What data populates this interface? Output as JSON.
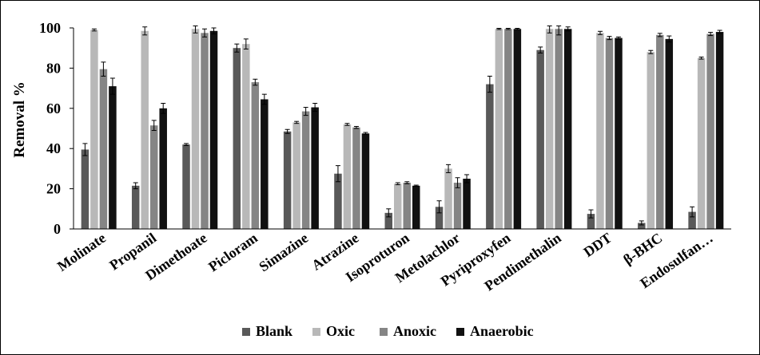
{
  "chart_data": {
    "type": "bar",
    "ylabel": "Removal %",
    "xlabel": "",
    "ylim": [
      0,
      100
    ],
    "yticks": [
      0,
      20,
      40,
      60,
      80,
      100
    ],
    "grid": false,
    "legend_position": "bottom",
    "categories": [
      "Molinate",
      "Propanil",
      "Dimethoate",
      "Picloram",
      "Simazine",
      "Atrazine",
      "Isoproturon",
      "Metolachlor",
      "Pyriproxyfen",
      "Pendimethalin",
      "DDT",
      "β-BHC",
      "Endosulfan…"
    ],
    "series": [
      {
        "name": "Blank",
        "color": "#595959",
        "values": [
          39.5,
          21.5,
          42,
          90,
          48.5,
          27.5,
          8,
          11,
          72,
          89,
          7.5,
          3,
          8.5
        ],
        "errors": [
          3,
          1.5,
          0.5,
          2,
          1,
          4,
          2,
          3,
          4,
          1.5,
          2,
          1,
          2.5
        ]
      },
      {
        "name": "Oxic",
        "color": "#b8b8b8",
        "values": [
          99,
          98.5,
          99.5,
          92,
          53,
          52,
          22.5,
          30,
          99.5,
          99.5,
          97.5,
          88,
          85
        ],
        "errors": [
          0.5,
          2,
          2,
          2.5,
          0.5,
          0.5,
          0.5,
          2,
          0.3,
          2,
          0.8,
          0.8,
          0.5
        ]
      },
      {
        "name": "Anoxic",
        "color": "#858585",
        "values": [
          79.5,
          51.5,
          97.5,
          73,
          58.5,
          50.5,
          23,
          23,
          99.5,
          99.5,
          95,
          96.5,
          97
        ],
        "errors": [
          3.5,
          2.5,
          2,
          1.5,
          2,
          0.5,
          0.5,
          2.5,
          0.3,
          3,
          0.8,
          0.8,
          0.8
        ]
      },
      {
        "name": "Anaerobic",
        "color": "#111111",
        "values": [
          71,
          60,
          98.5,
          64.5,
          60.5,
          47.5,
          21.5,
          25,
          99.5,
          99.5,
          95,
          94.5,
          98
        ],
        "errors": [
          4,
          2.5,
          1.5,
          2.5,
          2,
          0.5,
          0.3,
          2,
          0.3,
          1,
          0.5,
          1.5,
          0.8
        ]
      }
    ]
  }
}
